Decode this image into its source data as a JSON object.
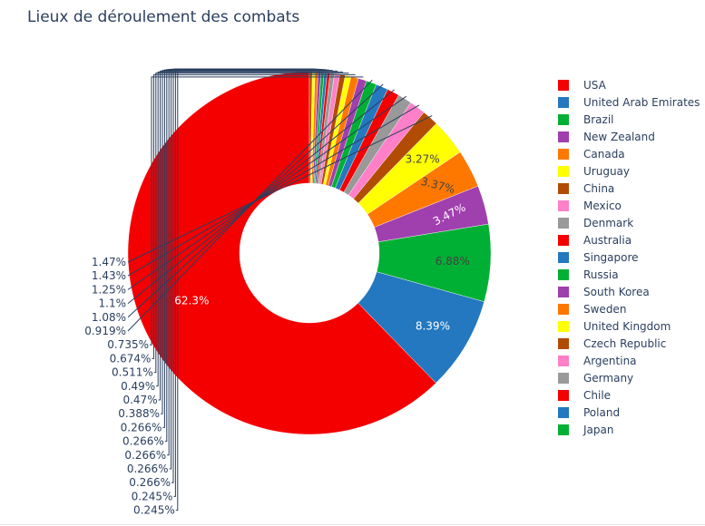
{
  "chart_data": {
    "type": "pie",
    "hole": true,
    "title": "Lieux de déroulement des combats",
    "slices": [
      {
        "label": "USA",
        "value": 62.3,
        "display": "62.3%",
        "color": "#f40000"
      },
      {
        "label": "United Arab Emirates",
        "value": 8.39,
        "display": "8.39%",
        "color": "#2378bf"
      },
      {
        "label": "Brazil",
        "value": 6.88,
        "display": "6.88%",
        "color": "#00b034"
      },
      {
        "label": "New Zealand",
        "value": 3.47,
        "display": "3.47%",
        "color": "#a03fae"
      },
      {
        "label": "Canada",
        "value": 3.37,
        "display": "3.37%",
        "color": "#fe7800"
      },
      {
        "label": "Uruguay",
        "value": 3.27,
        "display": "3.27%",
        "color": "#ffff00"
      },
      {
        "label": "China",
        "value": 1.47,
        "display": "1.47%",
        "color": "#b24c05"
      },
      {
        "label": "Mexico",
        "value": 1.43,
        "display": "1.43%",
        "color": "#ff80c8"
      },
      {
        "label": "Denmark",
        "value": 1.25,
        "display": "1.25%",
        "color": "#999999"
      },
      {
        "label": "Australia",
        "value": 1.1,
        "display": "1.1%",
        "color": "#f40000"
      },
      {
        "label": "Singapore",
        "value": 1.08,
        "display": "1.08%",
        "color": "#2378bf"
      },
      {
        "label": "Russia",
        "value": 0.919,
        "display": "0.919%",
        "color": "#00b034"
      },
      {
        "label": "South Korea",
        "value": 0.735,
        "display": "0.735%",
        "color": "#a03fae"
      },
      {
        "label": "Sweden",
        "value": 0.674,
        "display": "0.674%",
        "color": "#fe7800"
      },
      {
        "label": "United Kingdom",
        "value": 0.511,
        "display": "0.511%",
        "color": "#ffff00"
      },
      {
        "label": "Czech Republic",
        "value": 0.49,
        "display": "0.49%",
        "color": "#b24c05"
      },
      {
        "label": "Argentina",
        "value": 0.47,
        "display": "0.47%",
        "color": "#ff80c8"
      },
      {
        "label": "Germany",
        "value": 0.388,
        "display": "0.388%",
        "color": "#999999"
      },
      {
        "label": "Chile",
        "value": 0.266,
        "display": "0.266%",
        "color": "#f40000"
      },
      {
        "label": "Poland",
        "value": 0.266,
        "display": "0.266%",
        "color": "#2378bf"
      },
      {
        "label": "Japan",
        "value": 0.266,
        "display": "0.266%",
        "color": "#00b034"
      },
      {
        "label": "",
        "value": 0.266,
        "display": "0.266%",
        "color": "#a03fae"
      },
      {
        "label": "",
        "value": 0.266,
        "display": "0.266%",
        "color": "#fe7800"
      },
      {
        "label": "",
        "value": 0.245,
        "display": "0.245%",
        "color": "#ffff00"
      },
      {
        "label": "",
        "value": 0.245,
        "display": "0.245%",
        "color": "#b24c05"
      }
    ],
    "legend_position": "right"
  }
}
